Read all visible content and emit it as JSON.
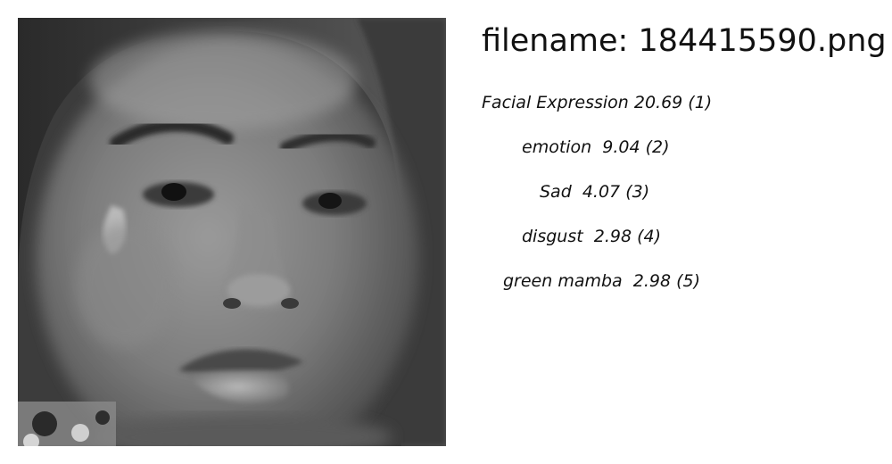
{
  "image": {
    "description_icon": "grayscale-face-photo"
  },
  "filename": "filename: 184415590.png",
  "labels": [
    {
      "text": "Facial Expression 20.69 (1)"
    },
    {
      "text": "emotion  9.04 (2)"
    },
    {
      "text": "Sad  4.07 (3)"
    },
    {
      "text": "disgust  2.98 (4)"
    },
    {
      "text": "green mamba  2.98 (5)"
    }
  ]
}
